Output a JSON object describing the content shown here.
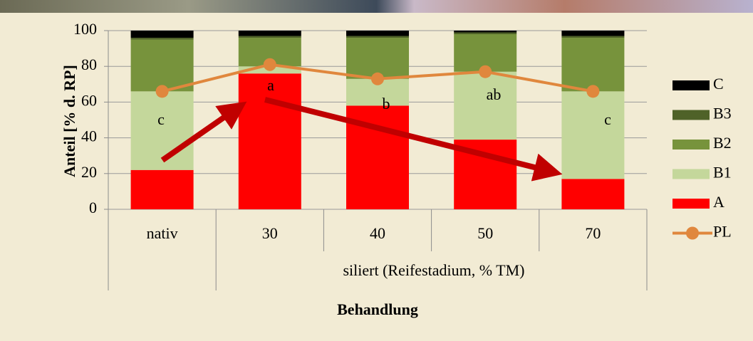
{
  "chart_data": {
    "type": "bar",
    "stacked": true,
    "categories": [
      "nativ",
      "30",
      "40",
      "50",
      "70"
    ],
    "group_label": "siliert (Reifestadium, % TM)",
    "xlabel": "Behandlung",
    "ylabel": "Anteil [% d. RP]",
    "ylim": [
      0,
      100
    ],
    "yticks": [
      0,
      20,
      40,
      60,
      80,
      100
    ],
    "grid": true,
    "legend": "right",
    "series": [
      {
        "name": "A",
        "color": "#ff0000",
        "values": [
          22,
          76,
          58,
          39,
          17
        ]
      },
      {
        "name": "B1",
        "color": "#c4d79b",
        "values": [
          44,
          4,
          15,
          38,
          49
        ]
      },
      {
        "name": "B2",
        "color": "#77933c",
        "values": [
          29,
          16,
          23,
          21,
          30
        ]
      },
      {
        "name": "B3",
        "color": "#4f6228",
        "values": [
          1,
          1,
          1,
          1,
          1
        ]
      },
      {
        "name": "C",
        "color": "#000000",
        "values": [
          4,
          3,
          3,
          1,
          3
        ]
      },
      {
        "name": "PL",
        "type": "line",
        "color": "#e0873d",
        "values": [
          66,
          81,
          73,
          77,
          66
        ]
      }
    ],
    "annotations": [
      "c",
      "a",
      "b",
      "ab",
      "c"
    ]
  }
}
